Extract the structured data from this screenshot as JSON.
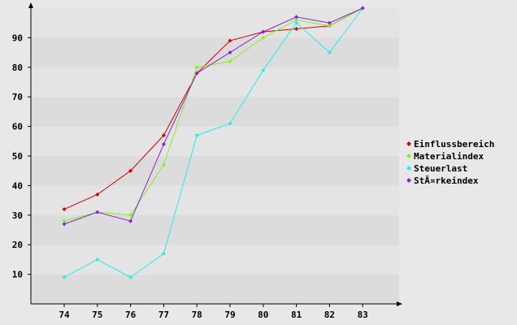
{
  "chart_data": {
    "type": "line",
    "title": "",
    "xlabel": "",
    "ylabel": "",
    "categories": [
      "74",
      "75",
      "76",
      "77",
      "78",
      "79",
      "80",
      "81",
      "82",
      "83"
    ],
    "ylim": [
      0,
      100
    ],
    "yticks": [
      10,
      20,
      30,
      40,
      50,
      60,
      70,
      80,
      90
    ],
    "grid": "horizontal alternating bands",
    "legend_position": "right",
    "background_color": "#e8e8e8",
    "band_colors": [
      "#dcdcdc",
      "#e4e4e4"
    ],
    "series": [
      {
        "name": "Einflussbereich",
        "color": "#dd0000",
        "values": [
          32,
          37,
          45,
          57,
          78,
          89,
          92,
          93,
          94,
          100
        ]
      },
      {
        "name": "Materialindex",
        "color": "#88ee22",
        "values": [
          28,
          31,
          30,
          47,
          80,
          82,
          90,
          96,
          94,
          100
        ]
      },
      {
        "name": "Steuerlast",
        "color": "#22eeee",
        "values": [
          9,
          15,
          9,
          17,
          57,
          61,
          79,
          95,
          85,
          100
        ]
      },
      {
        "name": "StÃ¤rkeindex",
        "color": "#8822dd",
        "values": [
          27,
          31,
          28,
          54,
          78,
          85,
          92,
          97,
          95,
          100
        ]
      }
    ]
  }
}
